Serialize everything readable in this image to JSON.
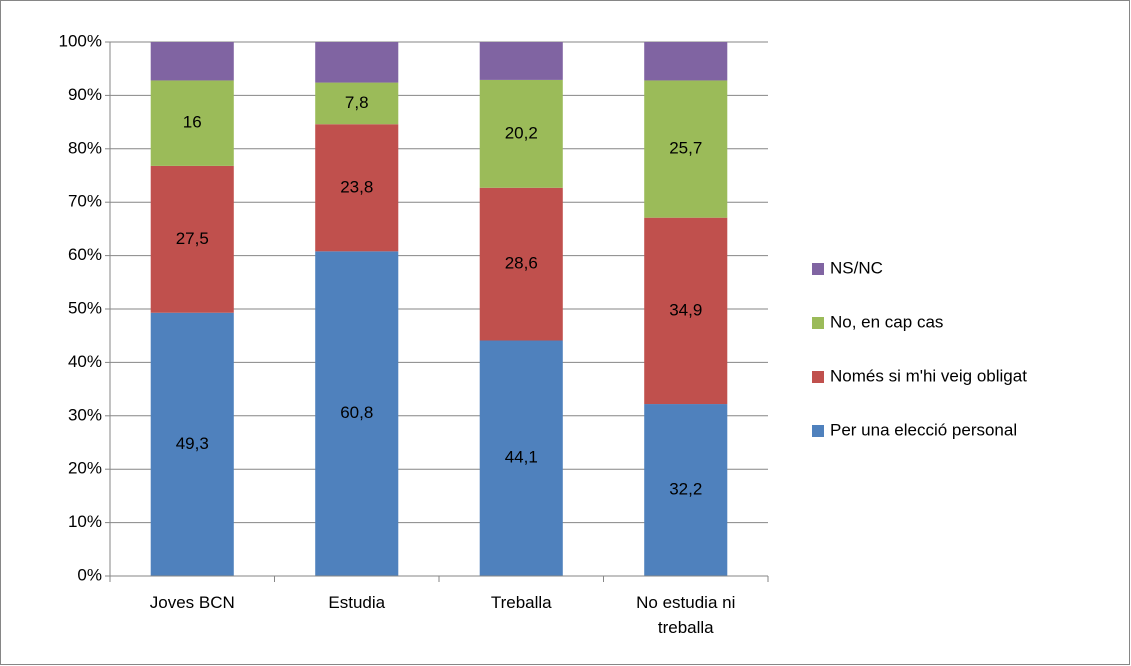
{
  "chart_data": {
    "type": "stacked_bar",
    "categories": [
      "Joves BCN",
      "Estudia",
      "Treballa",
      "No estudia ni treballa"
    ],
    "series": [
      {
        "name": "Per una elecció personal",
        "color": "#4f81bd",
        "values": [
          49.3,
          60.8,
          44.1,
          32.2
        ],
        "value_labels": [
          "49,3",
          "60,8",
          "44,1",
          "32,2"
        ]
      },
      {
        "name": "Només si m'hi veig obligat",
        "color": "#c0504d",
        "values": [
          27.5,
          23.8,
          28.6,
          34.9
        ],
        "value_labels": [
          "27,5",
          "23,8",
          "28,6",
          "34,9"
        ]
      },
      {
        "name": "No, en cap cas",
        "color": "#9bbb59",
        "values": [
          16,
          7.8,
          20.2,
          25.7
        ],
        "value_labels": [
          "16",
          "7,8",
          "20,2",
          "25,7"
        ]
      },
      {
        "name": "NS/NC",
        "color": "#8064a2",
        "values": [
          7.2,
          7.6,
          7.1,
          7.2
        ],
        "value_labels": [
          null,
          null,
          null,
          null
        ]
      }
    ],
    "ylim": [
      0,
      100
    ],
    "yticks": [
      {
        "value": 0,
        "label": "0%"
      },
      {
        "value": 10,
        "label": "10%"
      },
      {
        "value": 20,
        "label": "20%"
      },
      {
        "value": 30,
        "label": "30%"
      },
      {
        "value": 40,
        "label": "40%"
      },
      {
        "value": 50,
        "label": "50%"
      },
      {
        "value": 60,
        "label": "60%"
      },
      {
        "value": 70,
        "label": "70%"
      },
      {
        "value": 80,
        "label": "80%"
      },
      {
        "value": 90,
        "label": "90%"
      },
      {
        "value": 100,
        "label": "100%"
      }
    ],
    "grid": true,
    "legend": "right"
  }
}
